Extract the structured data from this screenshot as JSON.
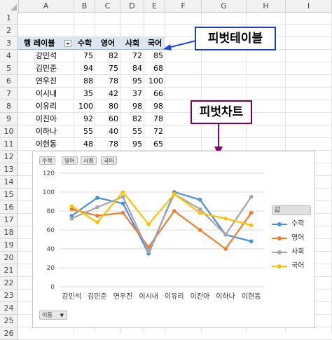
{
  "columns": [
    "A",
    "B",
    "C",
    "D",
    "E",
    "F",
    "G",
    "H",
    "I"
  ],
  "rows": [
    "1",
    "2",
    "3",
    "4",
    "5",
    "6",
    "7",
    "8",
    "9",
    "10",
    "11",
    "12",
    "13",
    "14",
    "15",
    "16",
    "17",
    "18",
    "19",
    "20",
    "21",
    "22",
    "23",
    "24",
    "25",
    "26"
  ],
  "pivot": {
    "row_header": "행 레이블",
    "col_headers": [
      "수학",
      "영어",
      "사회",
      "국어"
    ],
    "names": [
      "강민석",
      "김민준",
      "연우진",
      "이시내",
      "이유리",
      "이진아",
      "이하나",
      "이현동"
    ],
    "values": [
      [
        "75",
        "82",
        "72",
        "85"
      ],
      [
        "94",
        "75",
        "84",
        "68"
      ],
      [
        "88",
        "78",
        "95",
        "100"
      ],
      [
        "35",
        "42",
        "37",
        "66"
      ],
      [
        "100",
        "80",
        "98",
        "98"
      ],
      [
        "92",
        "60",
        "82",
        "78"
      ],
      [
        "55",
        "40",
        "55",
        "72"
      ],
      [
        "48",
        "78",
        "95",
        "65"
      ]
    ]
  },
  "callouts": {
    "pivot_table": "피벗테이블",
    "pivot_chart": "피벗차트"
  },
  "colors": {
    "callout_blue": "#1f3fbf",
    "callout_purple": "#7a0060",
    "arrow_blue": "#2040e0",
    "arrow_purple": "#8b0070"
  },
  "field_buttons": [
    "수학",
    "영어",
    "사회",
    "국어"
  ],
  "axis_button": "이름",
  "legend_title": "값",
  "chart_data": {
    "type": "line",
    "categories": [
      "강민석",
      "김민준",
      "연우진",
      "이시내",
      "이유리",
      "이진아",
      "이하나",
      "이현동"
    ],
    "ylim": [
      0,
      120
    ],
    "yticks": [
      "0",
      "20",
      "40",
      "60",
      "80",
      "100",
      "120"
    ],
    "series": [
      {
        "name": "수학",
        "color": "#4a90d9",
        "values": [
          75,
          94,
          88,
          35,
          100,
          92,
          55,
          48
        ]
      },
      {
        "name": "영어",
        "color": "#ed7d31",
        "values": [
          82,
          75,
          78,
          42,
          80,
          60,
          40,
          78
        ]
      },
      {
        "name": "사회",
        "color": "#a5a5a5",
        "values": [
          72,
          84,
          95,
          37,
          98,
          82,
          55,
          95
        ]
      },
      {
        "name": "국어",
        "color": "#ffc000",
        "values": [
          85,
          68,
          100,
          66,
          98,
          78,
          72,
          65
        ]
      }
    ],
    "grid": true,
    "legend": "right"
  }
}
